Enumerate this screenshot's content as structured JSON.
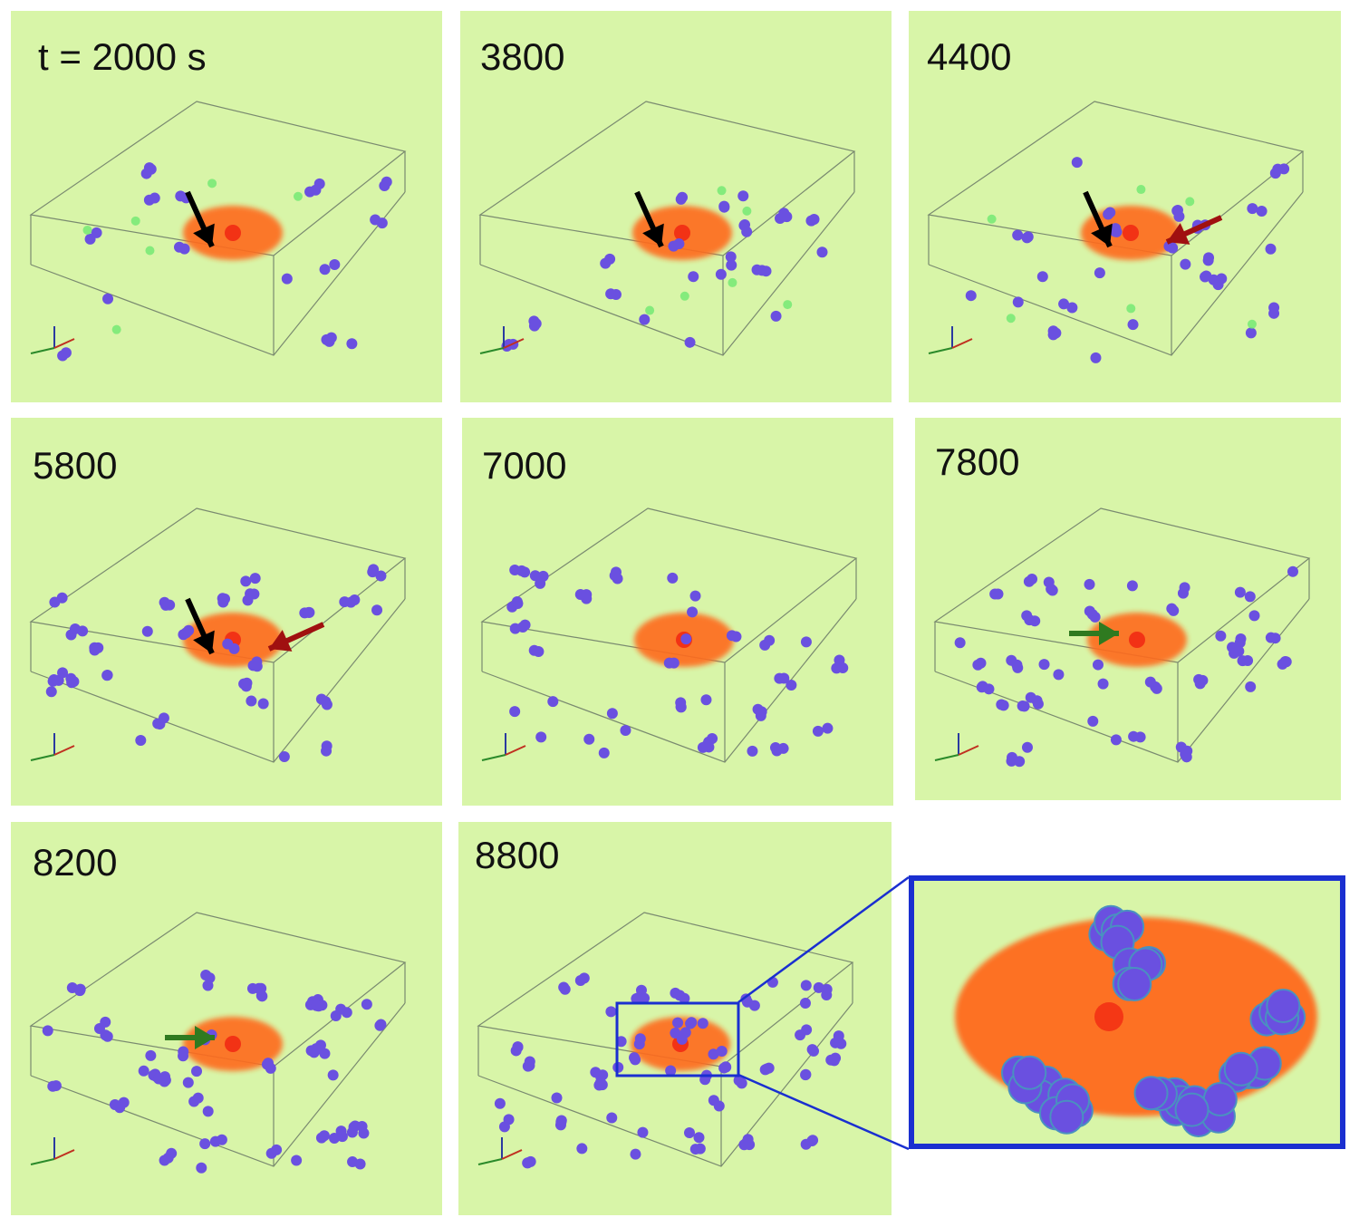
{
  "panels": [
    {
      "id": "p1",
      "label": "t = 2000 s",
      "arrows": [
        "black"
      ],
      "green_spheres": true
    },
    {
      "id": "p2",
      "label": "3800",
      "arrows": [
        "black"
      ],
      "green_spheres": true
    },
    {
      "id": "p3",
      "label": "4400",
      "arrows": [
        "black",
        "red"
      ],
      "green_spheres": true
    },
    {
      "id": "p4",
      "label": "5800",
      "arrows": [
        "black",
        "red"
      ],
      "green_spheres": false
    },
    {
      "id": "p5",
      "label": "7000",
      "arrows": [],
      "green_spheres": false
    },
    {
      "id": "p6",
      "label": "7800",
      "arrows": [
        "green"
      ],
      "green_spheres": false
    },
    {
      "id": "p7",
      "label": "8200",
      "arrows": [
        "green"
      ],
      "green_spheres": false
    },
    {
      "id": "p8",
      "label": "8800",
      "arrows": [],
      "green_spheres": false,
      "has_zoom_box": true
    }
  ],
  "colors": {
    "background": "#d8f5a8",
    "cell_cloud": "#ff6a1a",
    "cell_nucleus": "#f02010",
    "particles": "#6a50e0",
    "green_particles": "#6fe870",
    "arrow_black": "#000000",
    "arrow_red": "#a01010",
    "arrow_green": "#2f7a20",
    "zoom_frame": "#1a2fd0"
  }
}
